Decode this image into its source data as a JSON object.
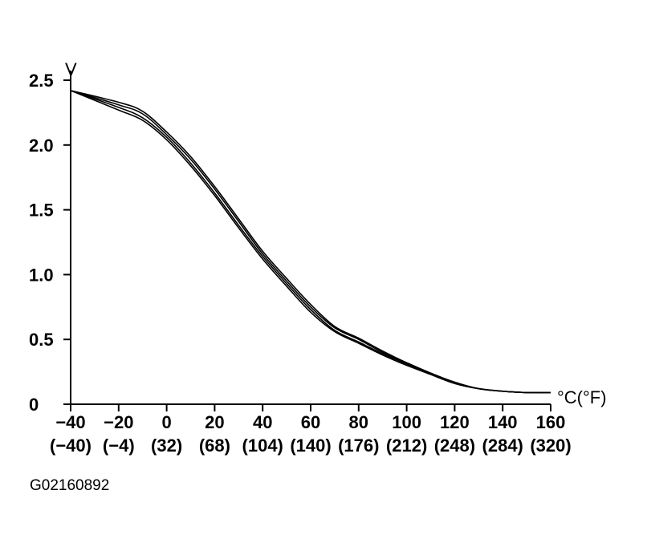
{
  "chart_data": {
    "type": "line",
    "y_unit_label": "V",
    "x_unit_label": "°C(°F)",
    "figure_id": "G02160892",
    "xlim": [
      -40,
      160
    ],
    "ylim": [
      0,
      2.5
    ],
    "grid": false,
    "x_ticks": [
      -40,
      -20,
      0,
      20,
      40,
      60,
      80,
      100,
      120,
      140,
      160
    ],
    "x_tick_labels": [
      "−40",
      "−20",
      "0",
      "20",
      "40",
      "60",
      "80",
      "100",
      "120",
      "140",
      "160"
    ],
    "x_tick_labels_f": [
      "(−40)",
      "(−4)",
      "(32)",
      "(68)",
      "(104)",
      "(140)",
      "(176)",
      "(212)",
      "(248)",
      "(284)",
      "(320)"
    ],
    "y_ticks": [
      0,
      0.5,
      1.0,
      1.5,
      2.0,
      2.5
    ],
    "y_tick_labels": [
      "0",
      "0.5",
      "1.0",
      "1.5",
      "2.0",
      "2.5"
    ],
    "series": [
      {
        "x": [
          -40,
          -20,
          -10,
          0,
          10,
          20,
          30,
          40,
          50,
          60,
          70,
          80,
          90,
          100,
          110,
          120,
          130,
          140,
          150,
          160
        ],
        "values": [
          2.42,
          2.27,
          2.19,
          2.04,
          1.84,
          1.61,
          1.36,
          1.12,
          0.91,
          0.71,
          0.56,
          0.47,
          0.38,
          0.3,
          0.23,
          0.16,
          0.12,
          0.1,
          0.09,
          0.09
        ]
      },
      {
        "x": [
          -40,
          -20,
          -10,
          0,
          10,
          20,
          30,
          40,
          50,
          60,
          70,
          80,
          90,
          100,
          110,
          120,
          130,
          140,
          150,
          160
        ],
        "values": [
          2.42,
          2.29,
          2.21,
          2.06,
          1.86,
          1.63,
          1.38,
          1.14,
          0.93,
          0.73,
          0.57,
          0.48,
          0.39,
          0.31,
          0.23,
          0.16,
          0.12,
          0.1,
          0.09,
          0.09
        ]
      },
      {
        "x": [
          -40,
          -20,
          -10,
          0,
          10,
          20,
          30,
          40,
          50,
          60,
          70,
          80,
          90,
          100,
          110,
          120,
          130,
          140,
          150,
          160
        ],
        "values": [
          2.42,
          2.31,
          2.24,
          2.08,
          1.89,
          1.66,
          1.41,
          1.16,
          0.95,
          0.75,
          0.59,
          0.5,
          0.4,
          0.32,
          0.24,
          0.17,
          0.12,
          0.1,
          0.09,
          0.09
        ]
      },
      {
        "x": [
          -40,
          -20,
          -10,
          0,
          10,
          20,
          30,
          40,
          50,
          60,
          70,
          80,
          90,
          100,
          110,
          120,
          130,
          140,
          150,
          160
        ],
        "values": [
          2.42,
          2.33,
          2.26,
          2.1,
          1.91,
          1.68,
          1.43,
          1.18,
          0.97,
          0.77,
          0.6,
          0.51,
          0.41,
          0.32,
          0.24,
          0.17,
          0.12,
          0.1,
          0.09,
          0.09
        ]
      }
    ]
  }
}
